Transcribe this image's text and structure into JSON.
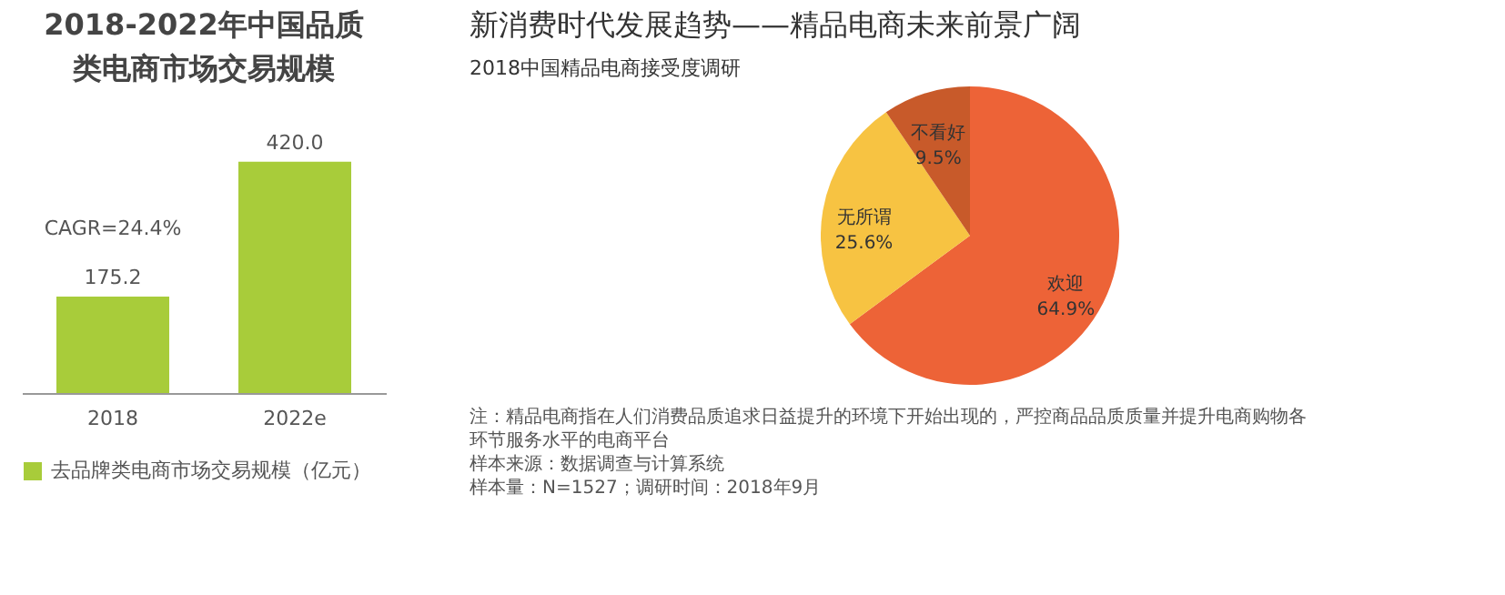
{
  "chart_data": [
    {
      "type": "bar",
      "title": "2018-2022年中国品质类电商市场交易规模",
      "categories": [
        "2018",
        "2022e"
      ],
      "series": [
        {
          "name": "去品牌类电商市场交易规模（亿元）",
          "color": "#a8cc3a",
          "values": [
            175.2,
            420.0
          ],
          "value_labels": [
            "175.2",
            "420.0"
          ]
        }
      ],
      "legend": "bottom",
      "annotations": [
        "CAGR=24.4%"
      ]
    },
    {
      "type": "pie",
      "title": "新消费时代发展趋势——精品电商未来前景广阔",
      "subtitle": "2018中国精品电商接受度调研",
      "categories": [
        "欢迎",
        "无所谓",
        "不看好"
      ],
      "values": [
        64.9,
        25.6,
        9.5
      ],
      "colors": [
        "#ed6337",
        "#f7c342",
        "#c85a2a"
      ],
      "value_labels": [
        "64.9%",
        "25.6%",
        "9.5%"
      ],
      "annotations": [
        "注：精品电商指在人们消费品质追求日益提升的环境下开始出现的，严控商品品质质量并提升电商购物各环节服务水平的电商平台",
        "样本来源：数据调查与计算系统",
        "样本量：N=1527；调研时间：2018年9月"
      ]
    }
  ]
}
